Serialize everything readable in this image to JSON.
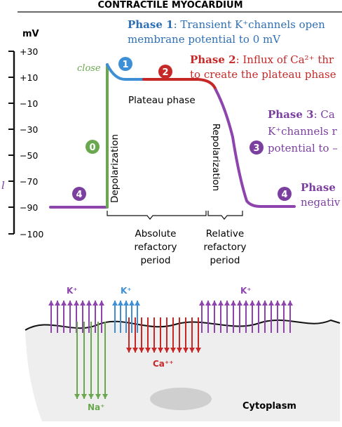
{
  "header": {
    "title": "CONTRACTILE MYOCARDIUM"
  },
  "axis": {
    "unit": "mV",
    "ticks": [
      "+30",
      "+10",
      "−10",
      "−30",
      "−50",
      "−70",
      "−90",
      "−100"
    ],
    "left_cut_label": "l"
  },
  "curve_labels": {
    "close": "close",
    "plateau": "Plateau phase",
    "depolarization": "Depolarization",
    "repolarization": "Repolarization"
  },
  "phase_badges": [
    {
      "label": "0",
      "color": "#6aa84f"
    },
    {
      "label": "1",
      "color": "#3d8fd6"
    },
    {
      "label": "2",
      "color": "#c62828"
    },
    {
      "label": "3",
      "color": "#7b3fa0"
    },
    {
      "label": "4",
      "color": "#7b3fa0"
    },
    {
      "label": "4",
      "color": "#7b3fa0"
    }
  ],
  "phase_notes": {
    "p1": {
      "title": "Phase 1",
      "line1": ": Transient K⁺channels open",
      "line2": "membrane potential to 0 mV",
      "color": "#2e6fb5"
    },
    "p2": {
      "title": "Phase 2",
      "line1": ": Influx of Ca²⁺ thr",
      "line2": "to create the plateau phase",
      "color": "#c62828"
    },
    "p3": {
      "title": "Phase 3",
      "line1": ": Ca",
      "line2": "K⁺channels r",
      "line3": "potential to –",
      "color": "#7b3fa0"
    },
    "p4": {
      "title": "Phase",
      "line2": "negativ",
      "color": "#7b3fa0"
    }
  },
  "refractory": {
    "absolute": [
      "Absolute",
      "refactory",
      "period"
    ],
    "relative": [
      "Relative",
      "refactory",
      "period"
    ]
  },
  "membrane": {
    "ion_labels": {
      "k_left": "K⁺",
      "k_mid": "K⁺",
      "k_right": "K⁺",
      "ca": "Ca⁺⁺",
      "na": "Na⁺"
    },
    "cytoplasm": "Cytoplasm"
  },
  "colors": {
    "purple": "#8e44ad",
    "green": "#6aa84f",
    "blue": "#3d8fd6",
    "red": "#c62828",
    "cell": "#eeeeee",
    "membrane": "#111111"
  }
}
